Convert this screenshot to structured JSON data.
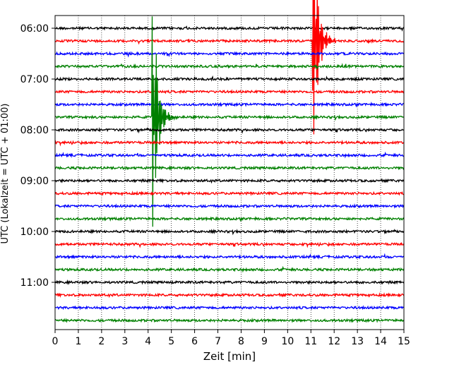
{
  "chart_data": {
    "type": "line",
    "title": "",
    "xlabel": "Zeit  [min]",
    "ylabel": "UTC (Lokalzeit = UTC + 01:00)",
    "xlim": [
      0,
      15
    ],
    "x_ticks": [
      "0",
      "1",
      "2",
      "3",
      "4",
      "5",
      "6",
      "7",
      "8",
      "9",
      "10",
      "11",
      "12",
      "13",
      "14",
      "15"
    ],
    "y_ticks": [
      "06:00",
      "07:00",
      "08:00",
      "09:00",
      "10:00",
      "11:00"
    ],
    "grid": "vertical-dotted",
    "legend": "none",
    "trace_interval_minutes": 15,
    "trace_colors": [
      "#000000",
      "#ff0000",
      "#0000ff",
      "#008000"
    ],
    "traces": [
      {
        "start": "06:00",
        "color": "#000000"
      },
      {
        "start": "06:15",
        "color": "#ff0000"
      },
      {
        "start": "06:30",
        "color": "#0000ff"
      },
      {
        "start": "06:45",
        "color": "#008000"
      },
      {
        "start": "07:00",
        "color": "#000000"
      },
      {
        "start": "07:15",
        "color": "#ff0000"
      },
      {
        "start": "07:30",
        "color": "#0000ff"
      },
      {
        "start": "07:45",
        "color": "#008000"
      },
      {
        "start": "08:00",
        "color": "#000000"
      },
      {
        "start": "08:15",
        "color": "#ff0000"
      },
      {
        "start": "08:30",
        "color": "#0000ff"
      },
      {
        "start": "08:45",
        "color": "#008000"
      },
      {
        "start": "09:00",
        "color": "#000000"
      },
      {
        "start": "09:15",
        "color": "#ff0000"
      },
      {
        "start": "09:30",
        "color": "#0000ff"
      },
      {
        "start": "09:45",
        "color": "#008000"
      },
      {
        "start": "10:00",
        "color": "#000000"
      },
      {
        "start": "10:15",
        "color": "#ff0000"
      },
      {
        "start": "10:30",
        "color": "#0000ff"
      },
      {
        "start": "10:45",
        "color": "#008000"
      },
      {
        "start": "11:00",
        "color": "#000000"
      },
      {
        "start": "11:15",
        "color": "#ff0000"
      },
      {
        "start": "11:30",
        "color": "#0000ff"
      },
      {
        "start": "11:45",
        "color": "#008000"
      }
    ],
    "events": [
      {
        "trace": 7,
        "minute": 4.2,
        "amplitude_rows": 10.5,
        "duration_min": 1.1
      },
      {
        "trace": 1,
        "minute": 11.1,
        "amplitude_rows": 10.5,
        "duration_min": 1.1
      }
    ]
  }
}
